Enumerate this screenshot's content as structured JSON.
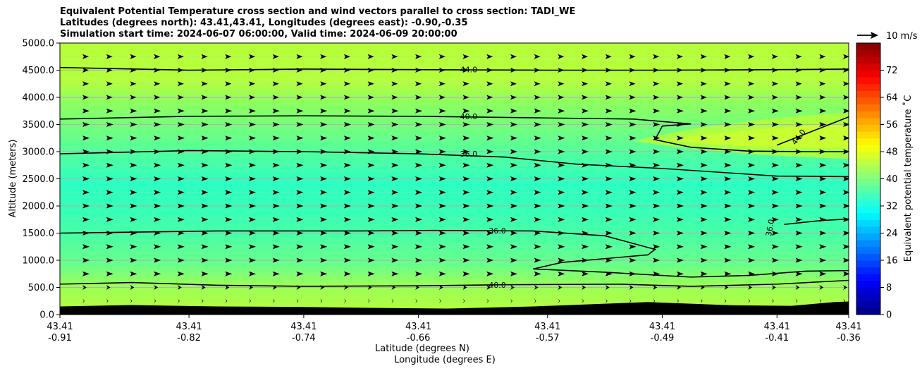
{
  "title_lines": [
    "Equivalent Potential Temperature cross section and wind vectors parallel to cross section: TADI_WE",
    "Latitudes (degrees north): 43.41,43.41, Longitudes (degrees east): -0.90,-0.35",
    "Simulation start time: 2024-06-07 06:00:00, Valid time: 2024-06-09 20:00:00"
  ],
  "chart_data": {
    "type": "heatmap",
    "ylabel": "Altitude (meters)",
    "xlabel_line1": "Latitude (degrees N)",
    "xlabel_line2": "Longitude (degrees E)",
    "ylim": [
      0,
      5000
    ],
    "y_ticks": [
      "0.0",
      "500.0",
      "1000.0",
      "1500.0",
      "2000.0",
      "2500.0",
      "3000.0",
      "3500.0",
      "4000.0",
      "4500.0",
      "5000.0"
    ],
    "y_tick_values": [
      0,
      500,
      1000,
      1500,
      2000,
      2500,
      3000,
      3500,
      4000,
      4500,
      5000
    ],
    "x_ticks": [
      {
        "lat": "43.41",
        "lon": "-0.91"
      },
      {
        "lat": "43.41",
        "lon": "-0.82"
      },
      {
        "lat": "43.41",
        "lon": "-0.74"
      },
      {
        "lat": "43.41",
        "lon": "-0.66"
      },
      {
        "lat": "43.41",
        "lon": "-0.57"
      },
      {
        "lat": "43.41",
        "lon": "-0.49"
      },
      {
        "lat": "43.41",
        "lon": "-0.41"
      },
      {
        "lat": "43.41",
        "lon": "-0.36"
      }
    ],
    "x_tick_positions": [
      -0.91,
      -0.82,
      -0.74,
      -0.66,
      -0.57,
      -0.49,
      -0.41,
      -0.36
    ],
    "xlim": [
      -0.91,
      -0.36
    ],
    "colorbar": {
      "label": "Equivalent potential temperature ˚C",
      "range": [
        0,
        80
      ],
      "ticks": [
        "0",
        "8",
        "16",
        "24",
        "32",
        "40",
        "48",
        "56",
        "64",
        "72"
      ],
      "tick_values": [
        0,
        8,
        16,
        24,
        32,
        40,
        48,
        56,
        64,
        72
      ],
      "colormap": "jet"
    },
    "wind_key": {
      "label": "10 m/s"
    },
    "contours": [
      {
        "level": 36,
        "label": "36.0",
        "points": [
          [
            -0.91,
            2960
          ],
          [
            -0.82,
            3020
          ],
          [
            -0.74,
            3000
          ],
          [
            -0.66,
            2960
          ],
          [
            -0.6,
            2900
          ],
          [
            -0.55,
            2770
          ],
          [
            -0.49,
            2690
          ],
          [
            -0.45,
            2620
          ],
          [
            -0.41,
            2550
          ],
          [
            -0.36,
            2540
          ]
        ]
      },
      {
        "level": 36,
        "label": "36.0",
        "points": [
          [
            -0.91,
            1500
          ],
          [
            -0.8,
            1540
          ],
          [
            -0.7,
            1540
          ],
          [
            -0.65,
            1550
          ],
          [
            -0.58,
            1540
          ],
          [
            -0.53,
            1450
          ],
          [
            -0.495,
            1200
          ],
          [
            -0.5,
            1100
          ],
          [
            -0.56,
            960
          ],
          [
            -0.58,
            840
          ],
          [
            -0.53,
            780
          ],
          [
            -0.47,
            690
          ],
          [
            -0.43,
            720
          ],
          [
            -0.39,
            800
          ],
          [
            -0.36,
            810
          ]
        ]
      },
      {
        "level": 36,
        "label": "36.0",
        "points": [
          [
            -0.405,
            1660
          ],
          [
            -0.38,
            1730
          ],
          [
            -0.36,
            1760
          ]
        ]
      },
      {
        "level": 40,
        "label": "40.0",
        "points": [
          [
            -0.91,
            3600
          ],
          [
            -0.82,
            3650
          ],
          [
            -0.74,
            3660
          ],
          [
            -0.66,
            3650
          ],
          [
            -0.57,
            3620
          ],
          [
            -0.51,
            3600
          ],
          [
            -0.47,
            3510
          ],
          [
            -0.49,
            3470
          ],
          [
            -0.495,
            3220
          ],
          [
            -0.47,
            3080
          ],
          [
            -0.43,
            3010
          ],
          [
            -0.39,
            3000
          ],
          [
            -0.36,
            3000
          ]
        ]
      },
      {
        "level": 40,
        "label": "40.0",
        "points": [
          [
            -0.91,
            560
          ],
          [
            -0.86,
            590
          ],
          [
            -0.8,
            540
          ],
          [
            -0.74,
            520
          ],
          [
            -0.66,
            530
          ],
          [
            -0.6,
            550
          ],
          [
            -0.52,
            560
          ],
          [
            -0.47,
            520
          ],
          [
            -0.41,
            560
          ],
          [
            -0.36,
            630
          ]
        ]
      },
      {
        "level": 44,
        "label": "44.0",
        "points": [
          [
            -0.91,
            4550
          ],
          [
            -0.82,
            4500
          ],
          [
            -0.74,
            4520
          ],
          [
            -0.66,
            4510
          ],
          [
            -0.57,
            4500
          ],
          [
            -0.49,
            4500
          ],
          [
            -0.41,
            4510
          ],
          [
            -0.36,
            4520
          ]
        ]
      },
      {
        "level": 44,
        "label": "44.0",
        "points": [
          [
            -0.41,
            3120
          ],
          [
            -0.385,
            3380
          ],
          [
            -0.36,
            3640
          ]
        ]
      }
    ]
  }
}
